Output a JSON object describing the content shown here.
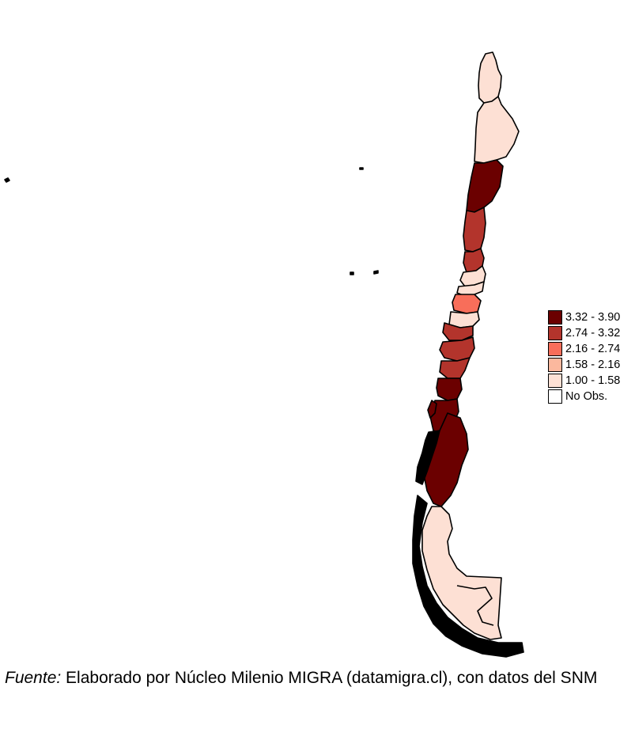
{
  "colors": {
    "c1": "#6b0000",
    "c2": "#b3342c",
    "c3": "#f86e5a",
    "c4": "#fbb89e",
    "c5": "#fde0d4",
    "c6": "#ffffff"
  },
  "legend": [
    {
      "label": "3.32 - 3.90",
      "color": "#6b0000"
    },
    {
      "label": "2.74 - 3.32",
      "color": "#b3342c"
    },
    {
      "label": "2.16 - 2.74",
      "color": "#f86e5a"
    },
    {
      "label": "1.58 - 2.16",
      "color": "#fbb89e"
    },
    {
      "label": "1.00 - 1.58",
      "color": "#fde0d4"
    },
    {
      "label": "No Obs.",
      "color": "#ffffff"
    }
  ],
  "caption": {
    "source_label": "Fuente:",
    "source_text": " Elaborado por Núcleo Milenio MIGRA (datamigra.cl), con datos del SNM"
  }
}
